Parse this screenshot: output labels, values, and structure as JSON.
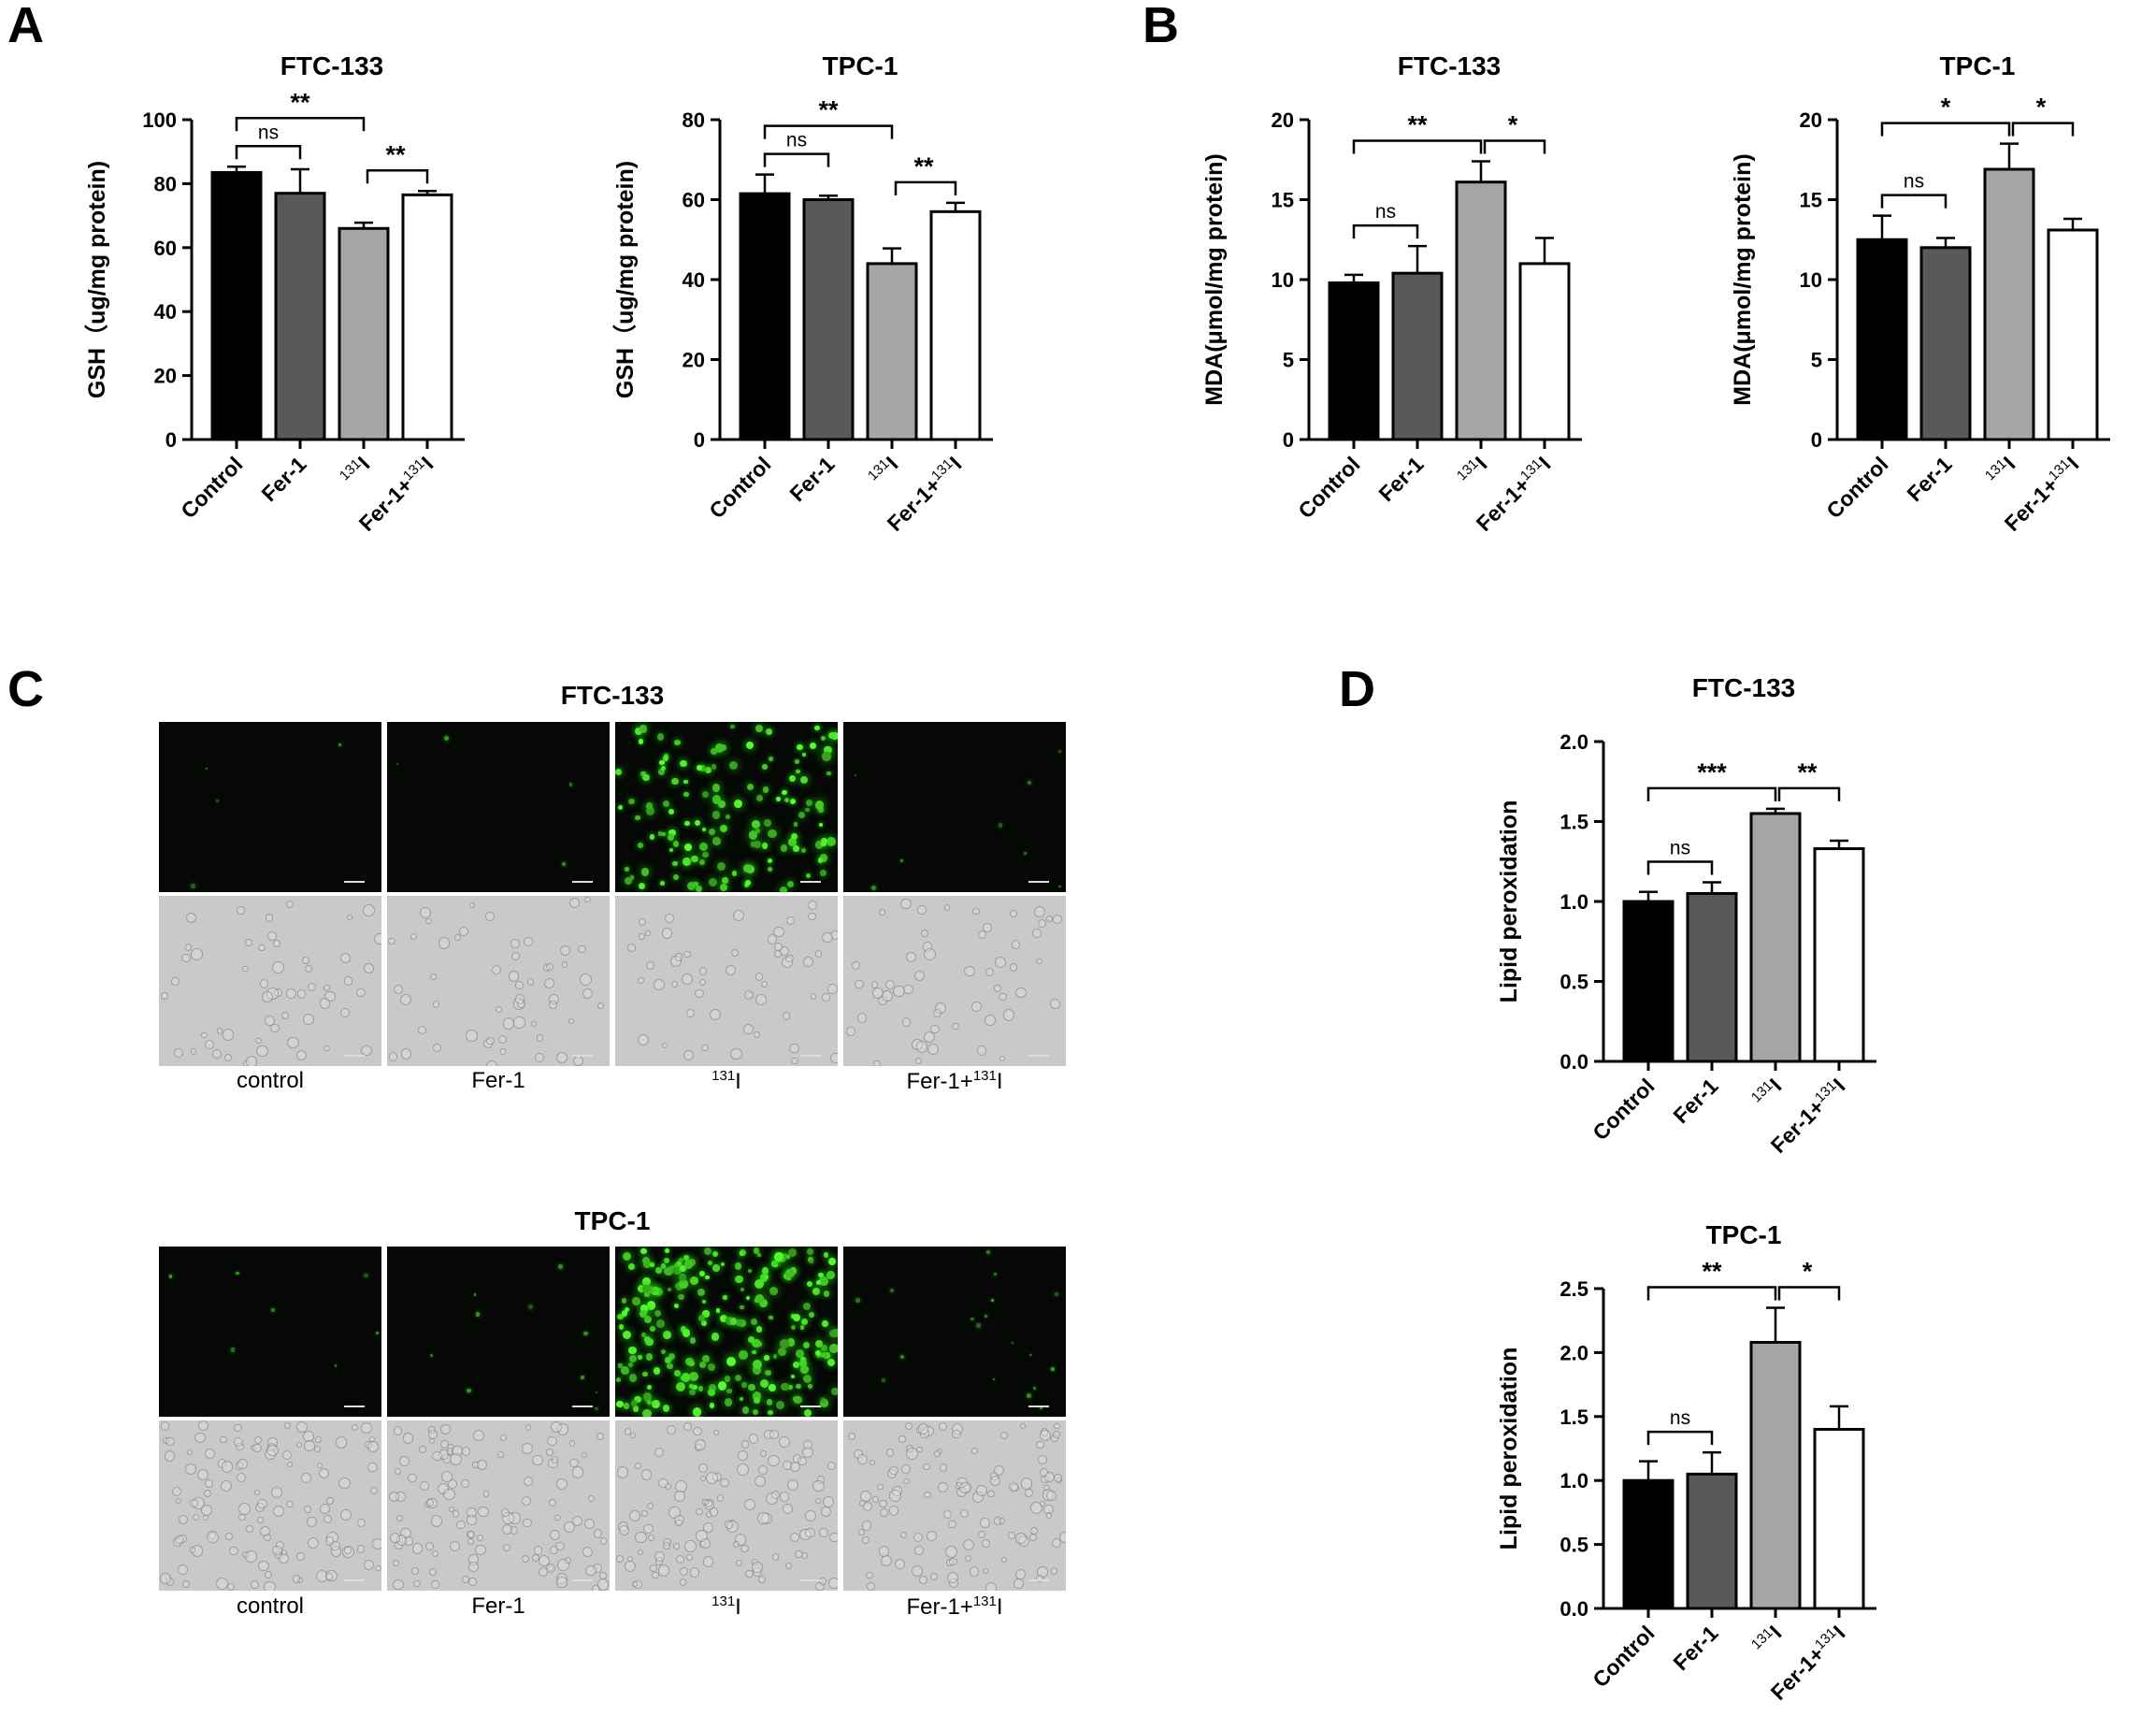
{
  "panels": {
    "A": "A",
    "B": "B",
    "C": "C",
    "D": "D"
  },
  "colors": {
    "Control": "#000000",
    "Fer-1": "#595959",
    "131I": "#a6a6a6",
    "Fer-1+131I": "#ffffff"
  },
  "chart_data": [
    {
      "id": "A1",
      "type": "bar",
      "title": "FTC-133",
      "ylabel": "GSH（ug/mg protein)",
      "categories": [
        "Control",
        "Fer-1",
        "131I",
        "Fer-1+131I"
      ],
      "values": [
        83.5,
        77,
        66,
        76.5
      ],
      "errors": [
        1.8,
        7.5,
        1.8,
        1.2
      ],
      "ylim": [
        0,
        100
      ],
      "yticks": [
        0,
        20,
        40,
        60,
        80,
        100
      ],
      "significance": [
        {
          "from": 0,
          "to": 1,
          "label": "ns"
        },
        {
          "from": 0,
          "to": 2,
          "label": "**"
        },
        {
          "from": 2,
          "to": 3,
          "label": "**"
        }
      ]
    },
    {
      "id": "A2",
      "type": "bar",
      "title": "TPC-1",
      "ylabel": "GSH（ug/mg protein)",
      "categories": [
        "Control",
        "Fer-1",
        "131I",
        "Fer-1+131I"
      ],
      "values": [
        61.5,
        60,
        44,
        57
      ],
      "errors": [
        4.8,
        1,
        3.8,
        2.2
      ],
      "ylim": [
        0,
        80
      ],
      "yticks": [
        0,
        20,
        40,
        60,
        80
      ],
      "significance": [
        {
          "from": 0,
          "to": 1,
          "label": "ns"
        },
        {
          "from": 0,
          "to": 2,
          "label": "**"
        },
        {
          "from": 2,
          "to": 3,
          "label": "**"
        }
      ]
    },
    {
      "id": "B1",
      "type": "bar",
      "title": "FTC-133",
      "ylabel": "MDA(μmol/mg protein)",
      "categories": [
        "Control",
        "Fer-1",
        "131I",
        "Fer-1+131I"
      ],
      "values": [
        9.8,
        10.4,
        16.1,
        11
      ],
      "errors": [
        0.5,
        1.7,
        1.3,
        1.6
      ],
      "ylim": [
        0,
        20
      ],
      "yticks": [
        0,
        5,
        10,
        15,
        20
      ],
      "significance": [
        {
          "from": 0,
          "to": 1,
          "label": "ns"
        },
        {
          "from": 0,
          "to": 2,
          "label": "**"
        },
        {
          "from": 2,
          "to": 3,
          "label": "*"
        }
      ]
    },
    {
      "id": "B2",
      "type": "bar",
      "title": "TPC-1",
      "ylabel": "MDA(μmol/mg protein)",
      "categories": [
        "Control",
        "Fer-1",
        "131I",
        "Fer-1+131I"
      ],
      "values": [
        12.5,
        12,
        16.9,
        13.1
      ],
      "errors": [
        1.5,
        0.6,
        1.6,
        0.7
      ],
      "ylim": [
        0,
        20
      ],
      "yticks": [
        0,
        5,
        10,
        15,
        20
      ],
      "significance": [
        {
          "from": 0,
          "to": 1,
          "label": "ns"
        },
        {
          "from": 0,
          "to": 2,
          "label": "*"
        },
        {
          "from": 2,
          "to": 3,
          "label": "*"
        }
      ]
    },
    {
      "id": "D1",
      "type": "bar",
      "title": "FTC-133",
      "ylabel": "Lipid peroxidation",
      "categories": [
        "Control",
        "Fer-1",
        "131I",
        "Fer-1+131I"
      ],
      "values": [
        1.0,
        1.05,
        1.55,
        1.33
      ],
      "errors": [
        0.06,
        0.07,
        0.03,
        0.05
      ],
      "ylim": [
        0,
        2.0
      ],
      "yticks": [
        "0.0",
        "0.5",
        "1.0",
        "1.5",
        "2.0"
      ],
      "significance": [
        {
          "from": 0,
          "to": 1,
          "label": "ns"
        },
        {
          "from": 0,
          "to": 2,
          "label": "***"
        },
        {
          "from": 2,
          "to": 3,
          "label": "**"
        }
      ]
    },
    {
      "id": "D2",
      "type": "bar",
      "title": "TPC-1",
      "ylabel": "Lipid peroxidation",
      "categories": [
        "Control",
        "Fer-1",
        "131I",
        "Fer-1+131I"
      ],
      "values": [
        1.0,
        1.05,
        2.08,
        1.4
      ],
      "errors": [
        0.15,
        0.17,
        0.27,
        0.18
      ],
      "ylim": [
        0,
        2.5
      ],
      "yticks": [
        "0.0",
        "0.5",
        "1.0",
        "1.5",
        "2.0",
        "2.5"
      ],
      "significance": [
        {
          "from": 0,
          "to": 1,
          "label": "ns"
        },
        {
          "from": 0,
          "to": 2,
          "label": "**"
        },
        {
          "from": 2,
          "to": 3,
          "label": "*"
        }
      ]
    }
  ],
  "microscopy": [
    {
      "title": "FTC-133",
      "labels": [
        "control",
        "Fer-1",
        "131I",
        "Fer-1+131I"
      ],
      "fluorescence_level": [
        0.01,
        0.01,
        0.85,
        0.04
      ]
    },
    {
      "title": "TPC-1",
      "labels": [
        "control",
        "Fer-1",
        "131I",
        "Fer-1+131I"
      ],
      "fluorescence_level": [
        0.02,
        0.03,
        0.9,
        0.06
      ]
    }
  ]
}
